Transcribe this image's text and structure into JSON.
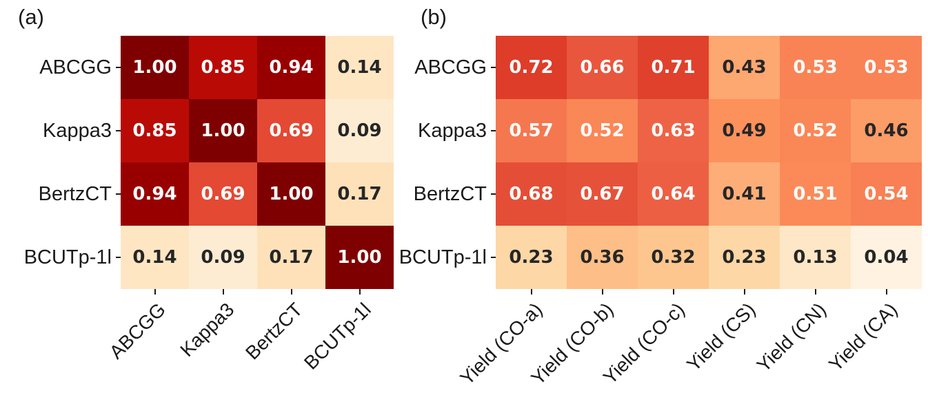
{
  "figure": {
    "background": "#ffffff",
    "axis_text_color": "#1a1a1a",
    "annot_text_dark": "#262626",
    "annot_text_light": "#ffffff"
  },
  "colormap": {
    "name": "OrRd",
    "anchors": [
      "#fff7ec",
      "#fee8c8",
      "#fdd49e",
      "#fdbb84",
      "#fc8d59",
      "#ef6548",
      "#d7301f",
      "#b30000",
      "#7f0000"
    ],
    "vmin": 0,
    "vmax": 1
  },
  "chart_data": [
    {
      "type": "heatmap",
      "panel_label": "(a)",
      "rows": [
        "ABCGG",
        "Kappa3",
        "BertzCT",
        "BCUTp-1l"
      ],
      "columns": [
        "ABCGG",
        "Kappa3",
        "BertzCT",
        "BCUTp-1l"
      ],
      "values": [
        [
          1.0,
          0.85,
          0.94,
          0.14
        ],
        [
          0.85,
          1.0,
          0.69,
          0.09
        ],
        [
          0.94,
          0.69,
          1.0,
          0.17
        ],
        [
          0.14,
          0.09,
          0.17,
          1.0
        ]
      ],
      "value_decimals": 2,
      "x_tick_rotation_deg": 45,
      "grid": false,
      "legend": "none"
    },
    {
      "type": "heatmap",
      "panel_label": "(b)",
      "rows": [
        "ABCGG",
        "Kappa3",
        "BertzCT",
        "BCUTp-1l"
      ],
      "columns": [
        "Yield (CO-a)",
        "Yield (CO-b)",
        "Yield (CO-c)",
        "Yield (CS)",
        "Yield (CN)",
        "Yield (CA)"
      ],
      "values": [
        [
          0.72,
          0.66,
          0.71,
          0.43,
          0.53,
          0.53
        ],
        [
          0.57,
          0.52,
          0.63,
          0.49,
          0.52,
          0.46
        ],
        [
          0.68,
          0.67,
          0.64,
          0.41,
          0.51,
          0.54
        ],
        [
          0.23,
          0.36,
          0.32,
          0.23,
          0.13,
          0.04
        ]
      ],
      "value_decimals": 2,
      "x_tick_rotation_deg": 45,
      "grid": false,
      "legend": "none"
    }
  ]
}
